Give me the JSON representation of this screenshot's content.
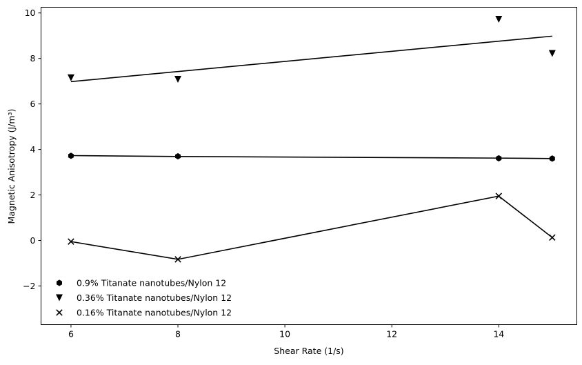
{
  "chart_data": {
    "type": "line",
    "xlabel": "Shear Rate (1/s)",
    "ylabel": "Magnetic Anisotropy (J/m³)",
    "xlim": [
      5.44,
      15.46
    ],
    "ylim": [
      -3.7,
      10.25
    ],
    "xticks": [
      6,
      8,
      10,
      12,
      14
    ],
    "xtick_labels": [
      "6",
      "8",
      "10",
      "12",
      "14"
    ],
    "yticks": [
      -2,
      0,
      2,
      4,
      6,
      8,
      10
    ],
    "ytick_labels": [
      "−2",
      "0",
      "2",
      "4",
      "6",
      "8",
      "10"
    ],
    "grid": false,
    "legend_position": "lower-left",
    "series": [
      {
        "name": "0.9% Titanate nanotubes/Nylon 12",
        "marker": "hexagon",
        "color": "#000000",
        "x": [
          6,
          8,
          14,
          15
        ],
        "y": [
          3.72,
          3.7,
          3.61,
          3.6
        ],
        "fit_line": {
          "x": [
            6,
            8,
            14,
            15
          ],
          "y": [
            3.73,
            3.69,
            3.62,
            3.6
          ]
        }
      },
      {
        "name": "0.36% Titanate nanotubes/Nylon 12",
        "marker": "triangle-down",
        "color": "#000000",
        "x": [
          6,
          8,
          14,
          15
        ],
        "y": [
          7.15,
          7.08,
          9.72,
          8.22
        ],
        "fit_line": {
          "x": [
            6,
            15
          ],
          "y": [
            6.98,
            8.98
          ]
        }
      },
      {
        "name": "0.16% Titanate nanotubes/Nylon 12",
        "marker": "x",
        "color": "#000000",
        "x": [
          6,
          8,
          14,
          15
        ],
        "y": [
          -0.05,
          -0.83,
          1.95,
          0.13
        ],
        "fit_line": {
          "x": [
            6,
            8,
            14,
            15
          ],
          "y": [
            -0.05,
            -0.83,
            1.95,
            0.13
          ]
        }
      }
    ]
  }
}
